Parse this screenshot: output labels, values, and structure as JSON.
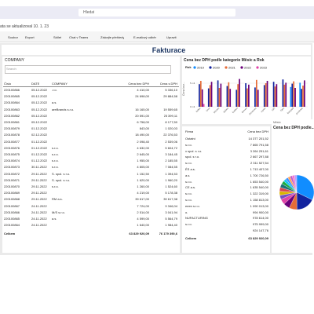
{
  "app": {
    "search": "Hledat",
    "status": "ata se aktualizoval 10. 1. 23"
  },
  "toolbar": {
    "items": [
      "Soubor",
      "Export",
      "Sdílet",
      "Chat v Teams",
      "Získejte přehledy",
      "E-mailový odběr",
      "Upravit"
    ]
  },
  "report": {
    "title": "Fakturace",
    "slicer": {
      "label": "COMPANY",
      "placeholder": "Search"
    },
    "table": {
      "headers": [
        "Číslo",
        "DATE",
        "COMPANY",
        "Cena bez DPH",
        "Cena s DPH"
      ],
      "rows": [
        [
          "220100866",
          "05.12.2022",
          ".r.o.",
          "4 410,00",
          "5 336,10"
        ],
        [
          "220100865",
          "05.12.2022",
          "",
          "24 698,00",
          "29 884,58"
        ],
        [
          "220100864",
          "05.12.2022",
          "a.s.",
          "",
          ""
        ],
        [
          "220100863",
          "05.12.2022",
          "areBrands s.r.o.",
          "16 165,00",
          "19 559,65"
        ],
        [
          "220100862",
          "05.12.2022",
          "",
          "20 591,00",
          "25 399,11"
        ],
        [
          "220100861",
          "05.12.2022",
          "",
          "6 758,00",
          "8 177,50"
        ],
        [
          "220100879",
          "01.12.2022",
          "",
          "843,00",
          "1 020,03"
        ],
        [
          "220100878",
          "02.12.2022",
          "",
          "18 490,00",
          "22 376,53"
        ],
        [
          "220100877",
          "01.12.2022",
          "",
          "2 098,40",
          "2 539,06"
        ],
        [
          "220100876",
          "01.12.2022",
          "s.r.o.",
          "4 632,00",
          "5 604,72"
        ],
        [
          "220100875",
          "01.12.2022",
          "s.r.o.",
          "2 645,00",
          "3 184,45"
        ],
        [
          "220100874",
          "01.12.2022",
          "s.r.o.",
          "1 955,00",
          "2 185,55"
        ],
        [
          "220100873",
          "30.11.2022",
          "s.r.o.",
          "4 805,00",
          "7 084,55"
        ],
        [
          "220100872",
          "29.11.2022",
          "S. spol. s r.o.",
          "1 152,50",
          "1 394,53"
        ],
        [
          "220100871",
          "29.11.2022",
          "S. spol. s r.o.",
          "1 620,00",
          "1 960,20"
        ],
        [
          "220100870",
          "29.11.2022",
          "s.r.o.",
          "1 260,00",
          "1 524,60"
        ],
        [
          "220100869",
          "29.11.2022",
          "",
          "4 219,00",
          "5 178,38"
        ],
        [
          "220100868",
          "29.11.2022",
          "RM a.s.",
          "39 617,00",
          "39 617,38"
        ],
        [
          "220100867",
          "24.11.2022",
          "",
          "7 724,00",
          "9 346,04"
        ],
        [
          "220100866",
          "24.11.2022",
          "M/S s.r.o.",
          "2 514,00",
          "3 041,94"
        ],
        [
          "220100865",
          "24.11.2022",
          "a.s.",
          "4 599,00",
          "5 564,79"
        ],
        [
          "220100864",
          "24.11.2022",
          "",
          "1 640,00",
          "1 984,40"
        ]
      ],
      "total": [
        "Celkem",
        "63 829 920,09",
        "76 179 390,6"
      ]
    },
    "firm_table": {
      "headers": [
        "Firma",
        "Cena bez DPH"
      ],
      "rows": [
        [
          "Ostatní",
          "14 377 201,52"
        ],
        [
          "s.r.o.",
          "7 865 791,58"
        ],
        [
          "x spol. s r.o.",
          "3 264 251,61"
        ],
        [
          "spol. s r.o.",
          "2 667 297,88"
        ],
        [
          "s.r.o.",
          "2 311 527,54"
        ],
        [
          "ÉS a.s.",
          "1 713 407,00"
        ],
        [
          "a.s.",
          "1 700 726,50"
        ],
        [
          "s.r.o.",
          "1 653 540,00"
        ],
        [
          "CE a.s.",
          "1 635 540,00"
        ],
        [
          "s.r.o.",
          "1 322 319,00"
        ],
        [
          "s.r.o.",
          "1 158 813,00"
        ],
        [
          "eeen s.r.o.",
          "1 090 013,00"
        ],
        [
          "o.",
          "994 900,00"
        ],
        [
          "NUFACTURING",
          "978 614,00"
        ],
        [
          "s.r.o.",
          "975 999,00"
        ],
        [
          "",
          "924 147,76"
        ]
      ],
      "total": [
        "Celkem",
        "63 829 920,09"
      ]
    }
  },
  "chart_data": [
    {
      "type": "bar",
      "title": "Cena bez DPH podle kategorie Měsíc a Rok",
      "y_label": "Cena bez...",
      "legend_title": "Rok",
      "categories": [
        "leden",
        "únor",
        "březen",
        "duben",
        "květen",
        "červen",
        "červenec",
        "srpen",
        "září",
        "říjen",
        "listopad",
        "prosinec"
      ],
      "series": [
        {
          "name": "2019",
          "color": "#118dff",
          "values": [
            null,
            null,
            null,
            null,
            null,
            null,
            null,
            null,
            null,
            null,
            4.2,
            5.1
          ]
        },
        {
          "name": "2020",
          "color": "#12239e",
          "values": [
            4.8,
            3.9,
            5.6,
            4.4,
            3.6,
            5.0,
            4.1,
            4.6,
            5.3,
            5.8,
            4.9,
            3.8
          ]
        },
        {
          "name": "2021",
          "color": "#e66c37",
          "values": [
            5.5,
            4.6,
            4.0,
            5.2,
            4.8,
            3.9,
            5.7,
            5.0,
            4.3,
            4.7,
            5.4,
            4.5
          ]
        },
        {
          "name": "2022",
          "color": "#6b007b",
          "values": [
            3.7,
            5.3,
            4.9,
            3.8,
            5.9,
            4.7,
            3.6,
            5.5,
            4.8,
            5.1,
            4.0,
            5.6
          ]
        },
        {
          "name": "2023",
          "color": "#e044a7",
          "values": [
            0.6,
            null,
            null,
            null,
            null,
            null,
            null,
            null,
            null,
            null,
            null,
            null
          ]
        }
      ],
      "ylim": [
        0,
        7
      ],
      "yticks": [
        {
          "value": 0,
          "label": "0 mil."
        },
        {
          "value": 5,
          "label": "5 mil."
        }
      ],
      "grid": true
    },
    {
      "type": "pie",
      "title": "Cena bez DPH podle...",
      "subtitle": "Město",
      "values": [
        14377201.52,
        7865791.58,
        3264251.61,
        2667297.88,
        2311527.54,
        1713407.0,
        1700726.5,
        1653540.0,
        1635540.0,
        1322319.0,
        1158813.0,
        1090013.0,
        994900.0,
        978614.0,
        975999.0,
        924147.76
      ],
      "colors": [
        "#118dff",
        "#12239e",
        "#e66c37",
        "#6b007b",
        "#e044a7",
        "#744ec2",
        "#d9b300",
        "#d64550",
        "#197278",
        "#1aab40",
        "#15c6f4",
        "#4092ff",
        "#ffa058",
        "#be5dc9",
        "#f472d0",
        "#b5a1ff"
      ]
    }
  ]
}
